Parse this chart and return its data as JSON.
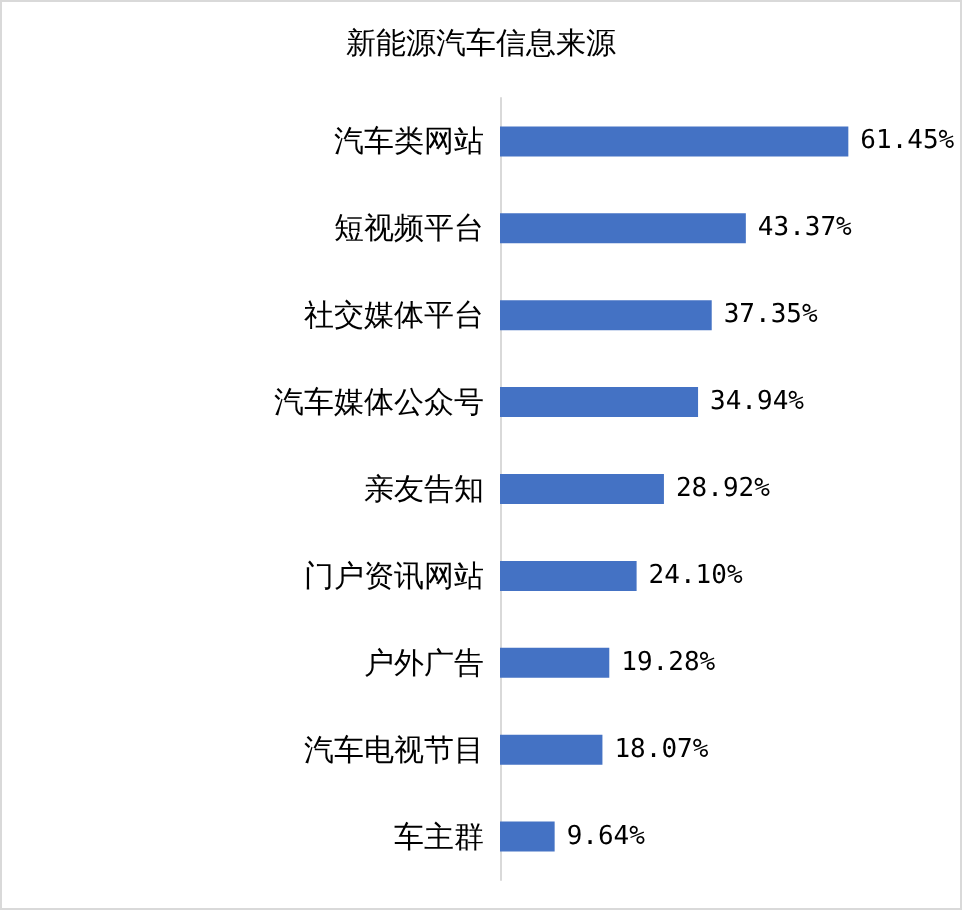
{
  "chart_data": {
    "type": "bar",
    "orientation": "horizontal",
    "title": "新能源汽车信息来源",
    "categories": [
      "汽车类网站",
      "短视频平台",
      "社交媒体平台",
      "汽车媒体公众号",
      "亲友告知",
      "门户资讯网站",
      "户外广告",
      "汽车电视节目",
      "车主群"
    ],
    "values": [
      61.45,
      43.37,
      37.35,
      34.94,
      28.92,
      24.1,
      19.28,
      18.07,
      9.64
    ],
    "value_labels": [
      "61.45%",
      "43.37%",
      "37.35%",
      "34.94%",
      "28.92%",
      "24.10%",
      "19.28%",
      "18.07%",
      "9.64%"
    ],
    "color": "#4472c4",
    "grid": false,
    "tick_labels": "y"
  }
}
